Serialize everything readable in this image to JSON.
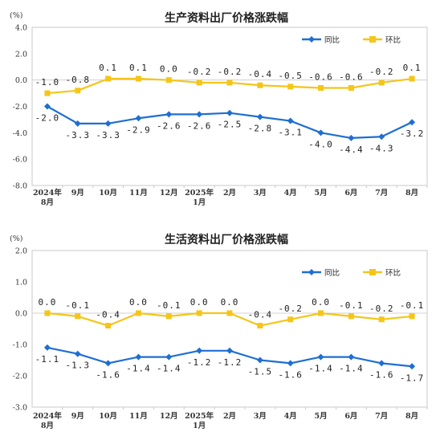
{
  "colors": {
    "yoy": "#1f6fd1",
    "mom": "#f5c518",
    "frame": "#c8c8c8",
    "axis": "#333333"
  },
  "chart_data": [
    {
      "type": "line",
      "title": "生产资料出厂价格涨跌幅",
      "unit_label": "(%)",
      "categories": [
        [
          "2024年",
          "8月"
        ],
        [
          "9月"
        ],
        [
          "10月"
        ],
        [
          "11月"
        ],
        [
          "12月"
        ],
        [
          "2025年",
          "1月"
        ],
        [
          "2月"
        ],
        [
          "3月"
        ],
        [
          "4月"
        ],
        [
          "5月"
        ],
        [
          "6月"
        ],
        [
          "7月"
        ],
        [
          "8月"
        ]
      ],
      "ylim": [
        -8.0,
        4.0
      ],
      "yticks": [
        "4.0",
        "2.0",
        "0.0",
        "-2.0",
        "-4.0",
        "-6.0",
        "-8.0"
      ],
      "legend_position": "top-right",
      "series": [
        {
          "name": "同比",
          "color": "#1f6fd1",
          "values": [
            -2.0,
            -3.3,
            -3.3,
            -2.9,
            -2.6,
            -2.6,
            -2.5,
            -2.8,
            -3.1,
            -4.0,
            -4.4,
            -4.3,
            -3.2
          ],
          "labels": [
            "-2.0",
            "-3.3",
            "-3.3",
            "-2.9",
            "-2.6",
            "-2.6",
            "-2.5",
            "-2.8",
            "-3.1",
            "-4.0",
            "-4.4",
            "-4.3",
            "-3.2"
          ]
        },
        {
          "name": "环比",
          "color": "#f5c518",
          "values": [
            -1.0,
            -0.8,
            0.1,
            0.1,
            0.0,
            -0.2,
            -0.2,
            -0.4,
            -0.5,
            -0.6,
            -0.6,
            -0.2,
            0.1
          ],
          "labels": [
            "-1.0",
            "-0.8",
            "0.1",
            "0.1",
            "0.0",
            "-0.2",
            "-0.2",
            "-0.4",
            "-0.5",
            "-0.6",
            "-0.6",
            "-0.2",
            "0.1"
          ]
        }
      ]
    },
    {
      "type": "line",
      "title": "生活资料出厂价格涨跌幅",
      "unit_label": "(%)",
      "categories": [
        [
          "2024年",
          "8月"
        ],
        [
          "9月"
        ],
        [
          "10月"
        ],
        [
          "11月"
        ],
        [
          "12月"
        ],
        [
          "2025年",
          "1月"
        ],
        [
          "2月"
        ],
        [
          "3月"
        ],
        [
          "4月"
        ],
        [
          "5月"
        ],
        [
          "6月"
        ],
        [
          "7月"
        ],
        [
          "8月"
        ]
      ],
      "ylim": [
        -3.0,
        2.0
      ],
      "yticks": [
        "2.0",
        "1.0",
        "0.0",
        "-1.0",
        "-2.0",
        "-3.0"
      ],
      "legend_position": "top-right",
      "series": [
        {
          "name": "同比",
          "color": "#1f6fd1",
          "values": [
            -1.1,
            -1.3,
            -1.6,
            -1.4,
            -1.4,
            -1.2,
            -1.2,
            -1.5,
            -1.6,
            -1.4,
            -1.4,
            -1.6,
            -1.7
          ],
          "labels": [
            "-1.1",
            "-1.3",
            "-1.6",
            "-1.4",
            "-1.4",
            "-1.2",
            "-1.2",
            "-1.5",
            "-1.6",
            "-1.4",
            "-1.4",
            "-1.6",
            "-1.7"
          ]
        },
        {
          "name": "环比",
          "color": "#f5c518",
          "values": [
            0.0,
            -0.1,
            -0.4,
            0.0,
            -0.1,
            0.0,
            0.0,
            -0.4,
            -0.2,
            0.0,
            -0.1,
            -0.2,
            -0.1
          ],
          "labels": [
            "0.0",
            "-0.1",
            "-0.4",
            "0.0",
            "-0.1",
            "0.0",
            "0.0",
            "-0.4",
            "-0.2",
            "0.0",
            "-0.1",
            "-0.2",
            "-0.1"
          ]
        }
      ]
    }
  ]
}
